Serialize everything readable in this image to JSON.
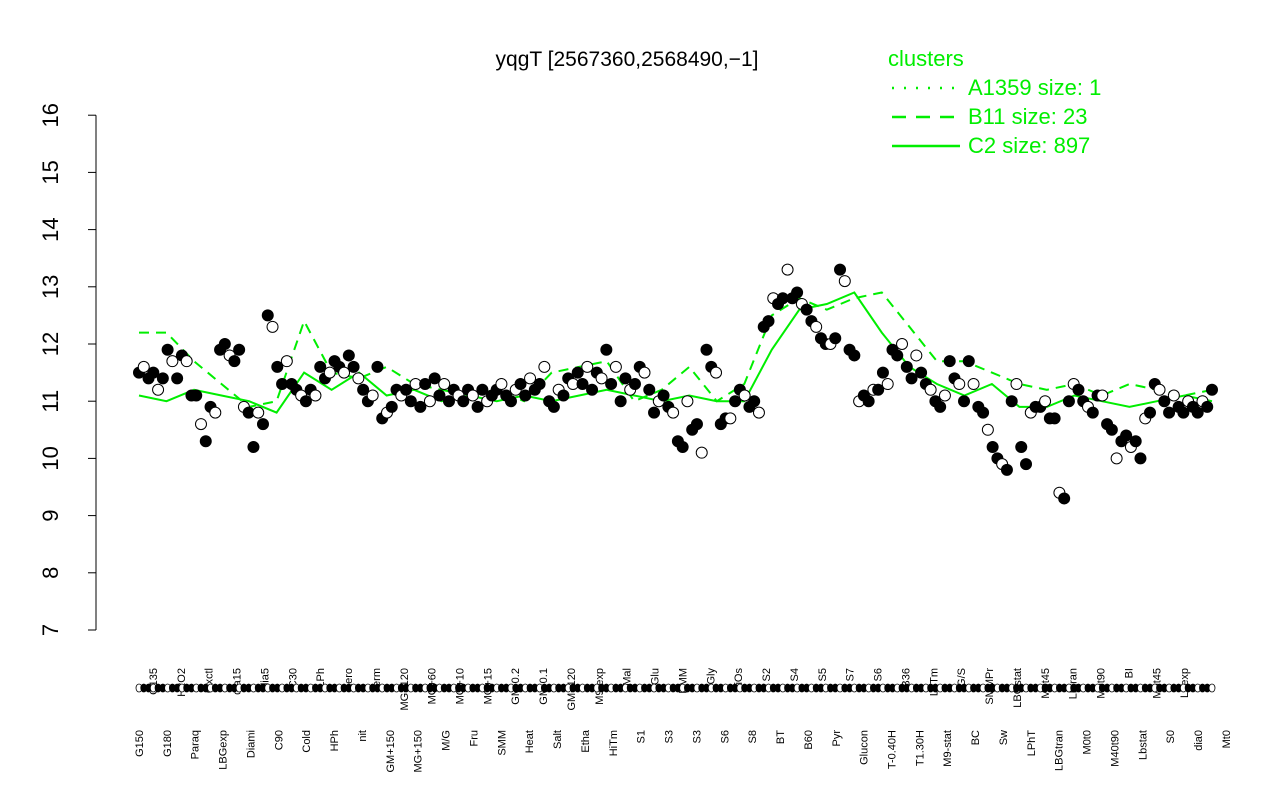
{
  "chart_data": {
    "type": "line",
    "title": "yqgT [2567360,2568490,−1]",
    "xlabel": "",
    "ylabel": "",
    "ylim": [
      7,
      16
    ],
    "y_ticks": [
      7,
      8,
      9,
      10,
      11,
      12,
      13,
      14,
      15,
      16
    ],
    "grid": false,
    "colors": {
      "line": "#00ee00",
      "point_filled": "#000000",
      "point_open": "#ffffff",
      "axis": "#000000"
    },
    "legend": {
      "title": "clusters",
      "placement": "top-right",
      "entries": [
        {
          "label": "A1359 size: 1",
          "style": "dotted"
        },
        {
          "label": "B11 size: 23",
          "style": "dashed"
        },
        {
          "label": "C2 size: 897",
          "style": "solid"
        }
      ]
    },
    "categories_top": [
      "G135",
      "H2O2",
      "Oxctl",
      "dia15",
      "dia5",
      "C30",
      "LPh",
      "aero",
      "ferm",
      "MG+120",
      "MG+60",
      "MG+10",
      "MG+15",
      "GM-0.2",
      "GM-0.1",
      "GM+120",
      "M9-exp",
      "Mal",
      "Glu",
      "BMM",
      "Gly",
      "HiOs",
      "S2",
      "S4",
      "S5",
      "S7",
      "S6",
      "B36",
      "LoTm",
      "G/S",
      "SMMPr",
      "LBGstat",
      "M0t45",
      "Lbtran",
      "M0t90",
      "BI",
      "M0t45",
      "Lbexp"
    ],
    "categories_bottom": [
      "G150",
      "G180",
      "Paraq",
      "LBGexp",
      "Diami",
      "C90",
      "Cold",
      "HPh",
      "nit",
      "GM+150",
      "MG+150",
      "M/G",
      "Fru",
      "SMM",
      "Heat",
      "Salt",
      "Etha",
      "HiTm",
      "S1",
      "S3",
      "S3",
      "S6",
      "S8",
      "BT",
      "B60",
      "Pyr",
      "Glucon",
      "T-0.40H",
      "T1.30H",
      "M9-stat",
      "BC",
      "Sw",
      "LPhT",
      "LBGtran",
      "M0t0",
      "M40t90",
      "Lbstat",
      "S0",
      "dia0",
      "Mt0"
    ],
    "point_values": [
      11.5,
      11.6,
      11.4,
      11.5,
      11.2,
      11.4,
      11.9,
      11.7,
      11.4,
      11.8,
      11.7,
      11.1,
      11.1,
      10.6,
      10.3,
      10.9,
      10.8,
      11.9,
      12.0,
      11.8,
      11.7,
      11.9,
      10.9,
      10.8,
      10.2,
      10.8,
      10.6,
      12.5,
      12.3,
      11.6,
      11.3,
      11.7,
      11.3,
      11.2,
      11.1,
      11.0,
      11.2,
      11.1,
      11.6,
      11.4,
      11.5,
      11.7,
      11.6,
      11.5,
      11.8,
      11.6,
      11.4,
      11.2,
      11.0,
      11.1,
      11.6,
      10.7,
      10.8,
      10.9,
      11.2,
      11.1,
      11.2,
      11.0,
      11.3,
      10.9,
      11.3,
      11.0,
      11.4,
      11.1,
      11.3,
      11.0,
      11.2,
      11.1,
      11.0,
      11.2,
      11.1,
      10.9,
      11.2,
      11.0,
      11.1,
      11.2,
      11.3,
      11.1,
      11.0,
      11.2,
      11.3,
      11.1,
      11.4,
      11.2,
      11.3,
      11.6,
      11.0,
      10.9,
      11.2,
      11.1,
      11.4,
      11.3,
      11.5,
      11.3,
      11.6,
      11.2,
      11.5,
      11.4,
      11.9,
      11.3,
      11.6,
      11.0,
      11.4,
      11.2,
      11.3,
      11.6,
      11.5,
      11.2,
      10.8,
      11.0,
      11.1,
      10.9,
      10.8,
      10.3,
      10.2,
      11.0,
      10.5,
      10.6,
      10.1,
      11.9,
      11.6,
      11.5,
      10.6,
      10.7,
      10.7,
      11.0,
      11.2,
      11.1,
      10.9,
      11.0,
      10.8,
      12.3,
      12.4,
      12.8,
      12.7,
      12.8,
      13.3,
      12.8,
      12.9,
      12.7,
      12.6,
      12.4,
      12.3,
      12.1,
      12.0,
      12.0,
      12.1,
      13.3,
      13.1,
      11.9,
      11.8,
      11.0,
      11.1,
      11.0,
      11.2,
      11.2,
      11.5,
      11.3,
      11.9,
      11.8,
      12.0,
      11.6,
      11.4,
      11.8,
      11.5,
      11.3,
      11.2,
      11.0,
      10.9,
      11.1,
      11.7,
      11.4,
      11.3,
      11.0,
      11.7,
      11.3,
      10.9,
      10.8,
      10.5,
      10.2,
      10.0,
      9.9,
      9.8,
      11.0,
      11.3,
      10.2,
      9.9,
      10.8,
      10.9,
      10.9,
      11.0,
      10.7,
      10.7,
      9.4,
      9.3,
      11.0,
      11.3,
      11.2,
      11.0,
      10.9,
      10.8,
      11.1,
      11.1,
      10.6,
      10.5,
      10.0,
      10.3,
      10.4,
      10.2,
      10.3,
      10.0,
      10.7,
      10.8,
      11.3,
      11.2,
      11.0,
      10.8,
      11.1,
      10.9,
      10.8,
      11.0,
      10.9,
      10.8,
      11.0,
      10.9,
      11.2
    ],
    "series": [
      {
        "name": "A1359 size: 1",
        "style": "dotted",
        "values": []
      },
      {
        "name": "B11 size: 23",
        "style": "dashed",
        "values": [
          12.2,
          12.2,
          11.7,
          11.3,
          10.9,
          11.0,
          12.4,
          11.5,
          11.4,
          11.6,
          11.3,
          11.2,
          11.1,
          11.2,
          11.0,
          11.5,
          11.6,
          11.7,
          11.0,
          11.2,
          11.6,
          11.0,
          11.3,
          12.5,
          12.8,
          12.6,
          12.8,
          12.9,
          12.3,
          11.7,
          11.7,
          11.5,
          11.3,
          11.2,
          11.3,
          11.1,
          11.3,
          11.2,
          11.1,
          11.2
        ]
      },
      {
        "name": "C2 size: 897",
        "style": "solid",
        "values": [
          11.1,
          11.0,
          11.2,
          11.1,
          11.0,
          10.8,
          11.5,
          11.2,
          11.5,
          11.1,
          11.2,
          11.0,
          11.1,
          11.0,
          11.1,
          11.0,
          11.1,
          11.2,
          11.1,
          11.0,
          11.1,
          11.0,
          11.0,
          11.9,
          12.6,
          12.7,
          12.9,
          12.2,
          11.6,
          11.3,
          11.1,
          11.3,
          10.9,
          10.9,
          11.1,
          11.0,
          10.9,
          11.0,
          11.1,
          11.0
        ]
      }
    ]
  }
}
